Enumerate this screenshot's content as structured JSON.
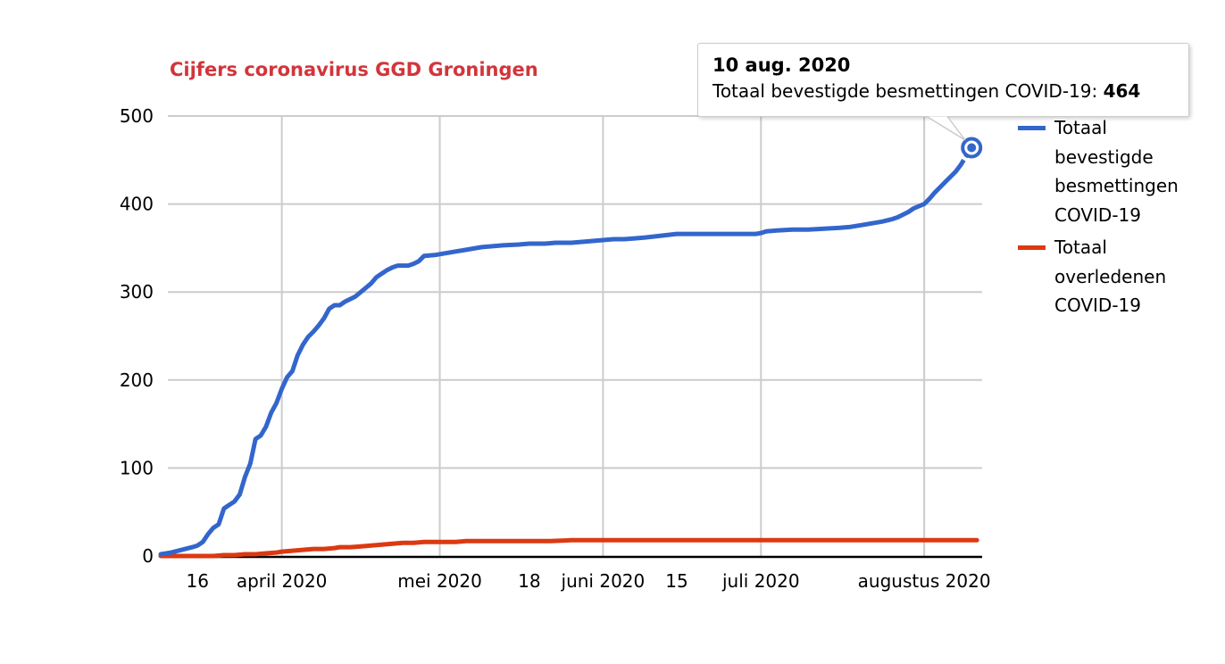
{
  "title": {
    "text": "Cijfers coronavirus GGD Groningen",
    "color": "#d2353b"
  },
  "tooltip": {
    "date": "10 aug. 2020",
    "label": "Totaal bevestigde besmettingen COVID-19:",
    "value": "464"
  },
  "legend": [
    {
      "name": "Totaal bevestigde besmettingen COVID-19",
      "color": "#3366cc"
    },
    {
      "name": "Totaal overledenen COVID-19",
      "color": "#dc3912"
    }
  ],
  "colors": {
    "confirmed_line": "#3366cc",
    "deaths_line": "#dc3912",
    "grid": "#cccccc",
    "axis": "#000000",
    "tooltip_border": "#c9c9c9"
  },
  "chart_data": {
    "type": "line",
    "title": "Cijfers coronavirus GGD Groningen",
    "xlabel": "",
    "ylabel": "",
    "x_unit": "days since 2020-03-09",
    "xlim": [
      0,
      156
    ],
    "ylim": [
      0,
      500
    ],
    "grid": true,
    "legend_position": "right",
    "y_ticks": [
      0,
      100,
      200,
      300,
      400,
      500
    ],
    "x_ticks": [
      {
        "d": 7,
        "label": "16",
        "grid": false
      },
      {
        "d": 23,
        "label": "april 2020",
        "grid": true
      },
      {
        "d": 53,
        "label": "mei 2020",
        "grid": true
      },
      {
        "d": 70,
        "label": "18",
        "grid": false
      },
      {
        "d": 84,
        "label": "juni 2020",
        "grid": true
      },
      {
        "d": 98,
        "label": "15",
        "grid": false
      },
      {
        "d": 114,
        "label": "juli 2020",
        "grid": true
      },
      {
        "d": 145,
        "label": "augustus 2020",
        "grid": true
      }
    ],
    "series": [
      {
        "name": "Totaal bevestigde besmettingen COVID-19",
        "color": "#3366cc",
        "points": [
          [
            0,
            2
          ],
          [
            2,
            4
          ],
          [
            4,
            7
          ],
          [
            6,
            10
          ],
          [
            7,
            12
          ],
          [
            8,
            16
          ],
          [
            9,
            25
          ],
          [
            10,
            32
          ],
          [
            11,
            36
          ],
          [
            12,
            54
          ],
          [
            13,
            58
          ],
          [
            14,
            62
          ],
          [
            15,
            70
          ],
          [
            16,
            90
          ],
          [
            17,
            105
          ],
          [
            18,
            133
          ],
          [
            19,
            137
          ],
          [
            20,
            147
          ],
          [
            21,
            163
          ],
          [
            22,
            174
          ],
          [
            23,
            190
          ],
          [
            24,
            203
          ],
          [
            25,
            210
          ],
          [
            26,
            228
          ],
          [
            27,
            240
          ],
          [
            28,
            249
          ],
          [
            29,
            255
          ],
          [
            30,
            262
          ],
          [
            31,
            270
          ],
          [
            32,
            281
          ],
          [
            33,
            285
          ],
          [
            34,
            285
          ],
          [
            35,
            289
          ],
          [
            36,
            292
          ],
          [
            37,
            295
          ],
          [
            38,
            300
          ],
          [
            39,
            305
          ],
          [
            40,
            310
          ],
          [
            41,
            317
          ],
          [
            42,
            321
          ],
          [
            43,
            325
          ],
          [
            44,
            328
          ],
          [
            45,
            330
          ],
          [
            47,
            330
          ],
          [
            48,
            332
          ],
          [
            49,
            335
          ],
          [
            50,
            341
          ],
          [
            52,
            342
          ],
          [
            53,
            343
          ],
          [
            55,
            345
          ],
          [
            56,
            346
          ],
          [
            58,
            348
          ],
          [
            60,
            350
          ],
          [
            61,
            351
          ],
          [
            63,
            352
          ],
          [
            65,
            353
          ],
          [
            68,
            354
          ],
          [
            70,
            355
          ],
          [
            73,
            355
          ],
          [
            75,
            356
          ],
          [
            78,
            356
          ],
          [
            80,
            357
          ],
          [
            82,
            358
          ],
          [
            84,
            359
          ],
          [
            86,
            360
          ],
          [
            88,
            360
          ],
          [
            90,
            361
          ],
          [
            92,
            362
          ],
          [
            95,
            364
          ],
          [
            98,
            366
          ],
          [
            102,
            366
          ],
          [
            106,
            366
          ],
          [
            110,
            366
          ],
          [
            113,
            366
          ],
          [
            114,
            367
          ],
          [
            115,
            369
          ],
          [
            117,
            370
          ],
          [
            120,
            371
          ],
          [
            123,
            371
          ],
          [
            126,
            372
          ],
          [
            129,
            373
          ],
          [
            131,
            374
          ],
          [
            133,
            376
          ],
          [
            135,
            378
          ],
          [
            137,
            380
          ],
          [
            139,
            383
          ],
          [
            140,
            385
          ],
          [
            142,
            391
          ],
          [
            143,
            395
          ],
          [
            145,
            400
          ],
          [
            146,
            406
          ],
          [
            147,
            413
          ],
          [
            148,
            419
          ],
          [
            149,
            425
          ],
          [
            150,
            431
          ],
          [
            151,
            437
          ],
          [
            152,
            445
          ],
          [
            153,
            455
          ],
          [
            154,
            464
          ]
        ]
      },
      {
        "name": "Totaal overledenen COVID-19",
        "color": "#dc3912",
        "points": [
          [
            0,
            0
          ],
          [
            8,
            0
          ],
          [
            10,
            0
          ],
          [
            12,
            1
          ],
          [
            14,
            1
          ],
          [
            16,
            2
          ],
          [
            18,
            2
          ],
          [
            20,
            3
          ],
          [
            22,
            4
          ],
          [
            23,
            5
          ],
          [
            25,
            6
          ],
          [
            27,
            7
          ],
          [
            29,
            8
          ],
          [
            31,
            8
          ],
          [
            33,
            9
          ],
          [
            34,
            10
          ],
          [
            36,
            10
          ],
          [
            38,
            11
          ],
          [
            40,
            12
          ],
          [
            42,
            13
          ],
          [
            44,
            14
          ],
          [
            46,
            15
          ],
          [
            48,
            15
          ],
          [
            50,
            16
          ],
          [
            53,
            16
          ],
          [
            56,
            16
          ],
          [
            58,
            17
          ],
          [
            62,
            17
          ],
          [
            66,
            17
          ],
          [
            70,
            17
          ],
          [
            74,
            17
          ],
          [
            78,
            18
          ],
          [
            84,
            18
          ],
          [
            95,
            18
          ],
          [
            110,
            18
          ],
          [
            125,
            18
          ],
          [
            140,
            18
          ],
          [
            155,
            18
          ]
        ]
      }
    ],
    "highlight": {
      "series_index": 0,
      "d": 154,
      "value": 464,
      "date_label": "10 aug. 2020"
    }
  }
}
